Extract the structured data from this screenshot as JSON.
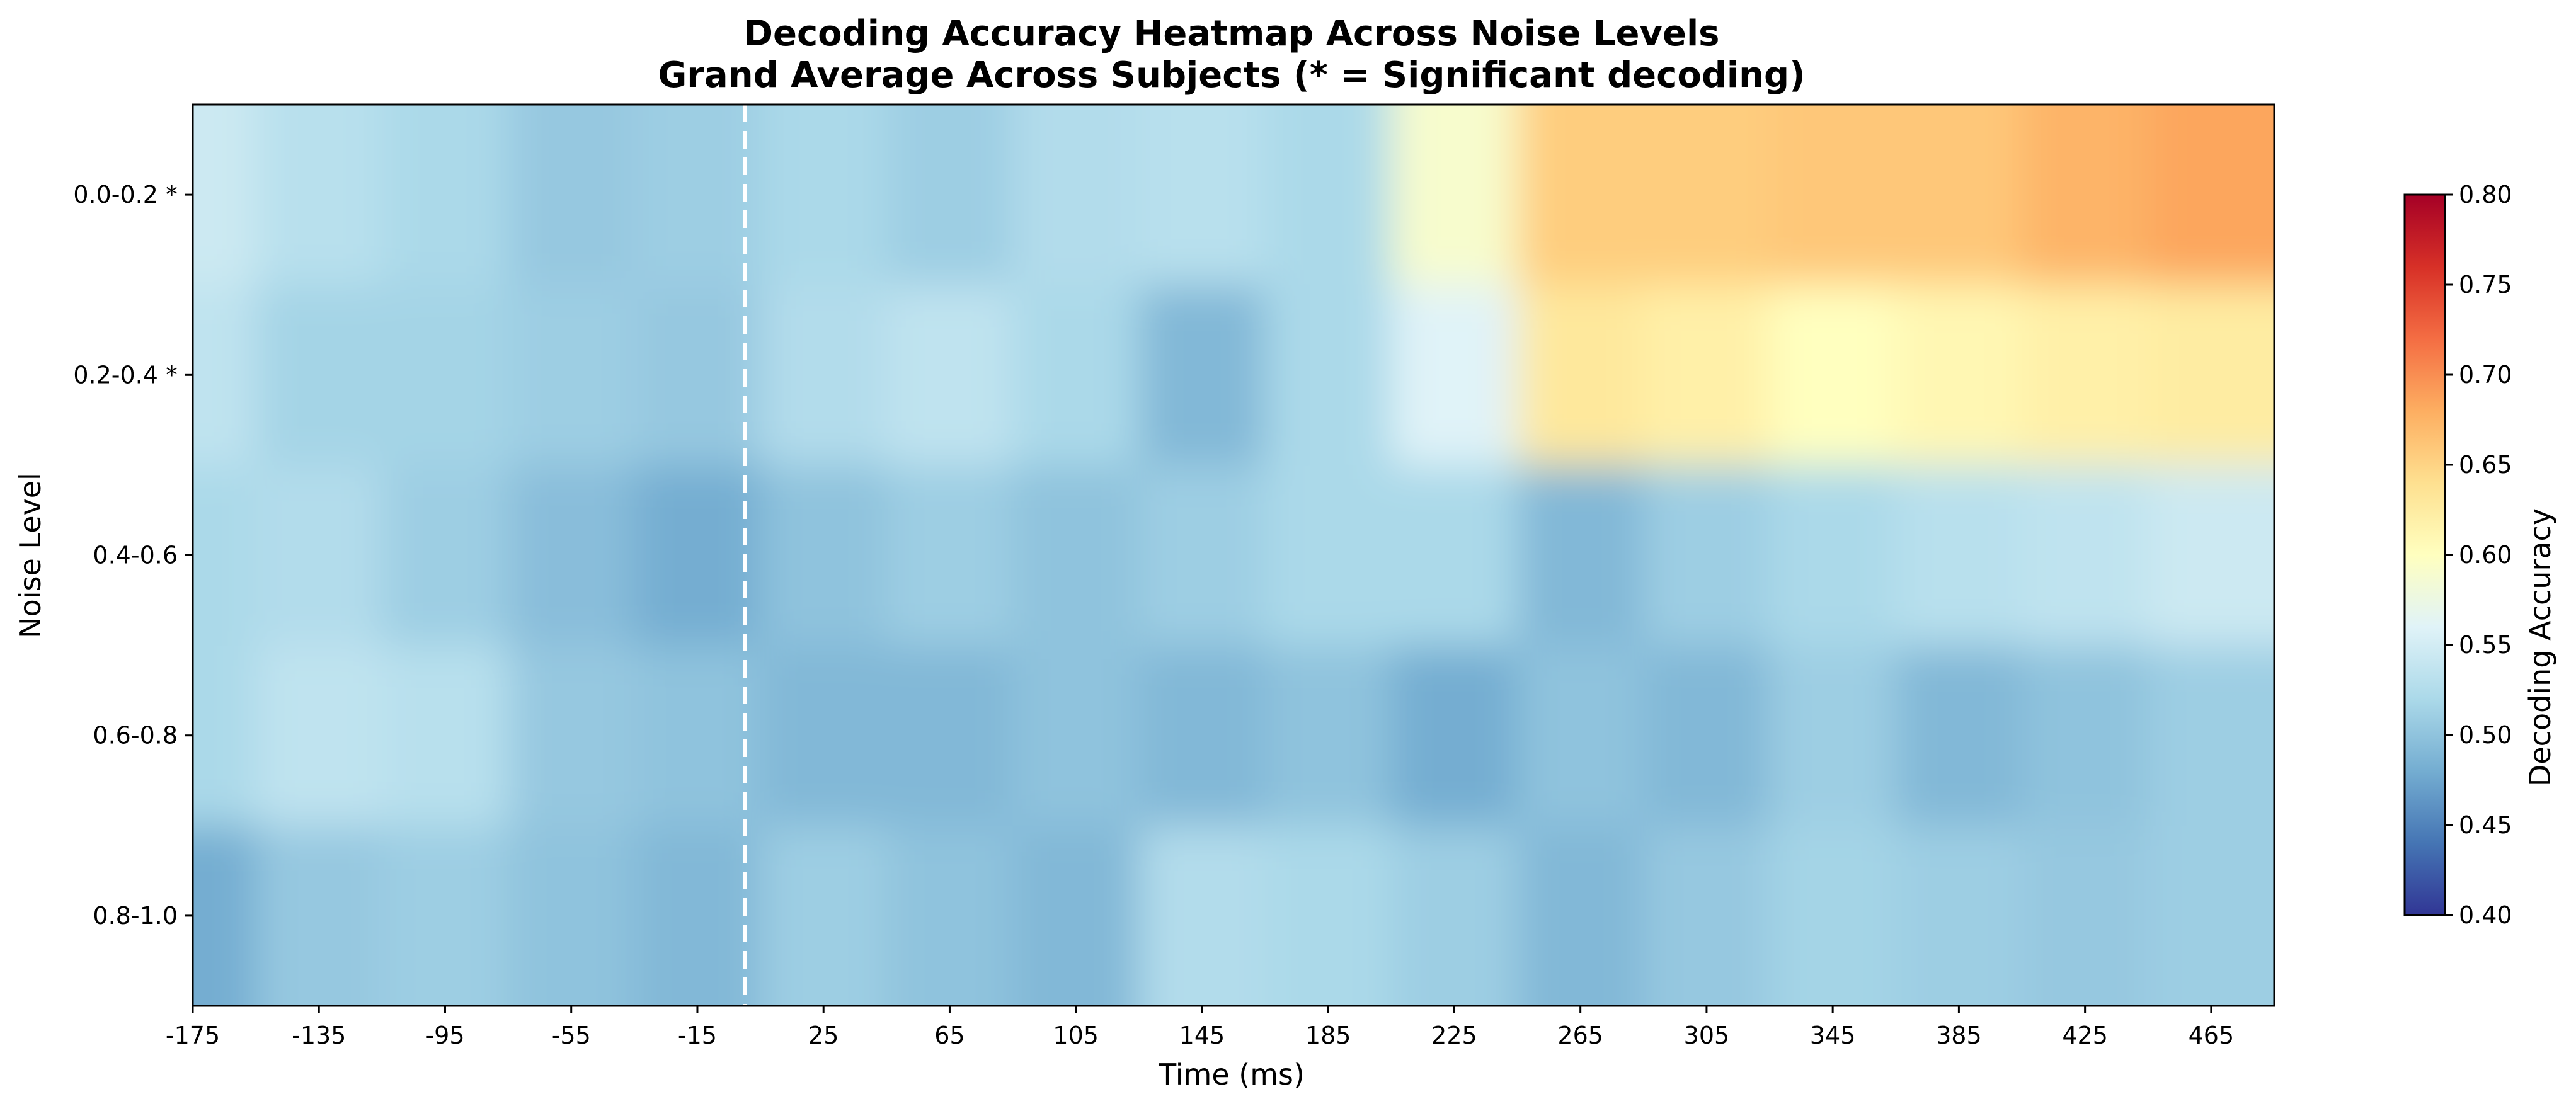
{
  "chart_data": {
    "type": "heatmap",
    "title_line1": "Decoding Accuracy Heatmap Across Noise Levels",
    "title_line2": "Grand Average Across Subjects (* = Significant decoding)",
    "xlabel": "Time (ms)",
    "ylabel": "Noise Level",
    "colorbar_label": "Decoding Accuracy",
    "colormap": "RdYlBu_r",
    "colormap_stops": [
      "#313695",
      "#4575b4",
      "#74add1",
      "#abd9e9",
      "#e0f3f8",
      "#ffffbf",
      "#fee090",
      "#fdae61",
      "#f46d43",
      "#d73027",
      "#a50026"
    ],
    "vlim": [
      0.4,
      0.8
    ],
    "colorbar_ticks": [
      "0.40",
      "0.45",
      "0.50",
      "0.55",
      "0.60",
      "0.65",
      "0.70",
      "0.75",
      "0.80"
    ],
    "x_tick_labels": [
      "-175",
      "-135",
      "-95",
      "-55",
      "-15",
      "25",
      "65",
      "105",
      "145",
      "185",
      "225",
      "265",
      "305",
      "345",
      "385",
      "425",
      "465"
    ],
    "x_ticks": [
      -175,
      -135,
      -95,
      -55,
      -15,
      25,
      65,
      105,
      145,
      185,
      225,
      265,
      305,
      345,
      385,
      425,
      465
    ],
    "xlim": [
      -175,
      485
    ],
    "x": [
      -175,
      -135,
      -95,
      -55,
      -15,
      25,
      65,
      105,
      145,
      185,
      225,
      265,
      305,
      345,
      385,
      425,
      465
    ],
    "y_categories": [
      "0.0-0.2 *",
      "0.2-0.4 *",
      "0.4-0.6",
      "0.6-0.8",
      "0.8-1.0"
    ],
    "significant_rows": [
      "0.0-0.2",
      "0.2-0.4"
    ],
    "stimulus_onset_ms": 0,
    "values": [
      [
        0.545,
        0.53,
        0.52,
        0.505,
        0.51,
        0.52,
        0.51,
        0.525,
        0.53,
        0.52,
        0.59,
        0.655,
        0.655,
        0.66,
        0.66,
        0.675,
        0.685
      ],
      [
        0.535,
        0.515,
        0.515,
        0.51,
        0.505,
        0.525,
        0.535,
        0.52,
        0.49,
        0.52,
        0.56,
        0.63,
        0.62,
        0.6,
        0.61,
        0.62,
        0.625
      ],
      [
        0.52,
        0.525,
        0.51,
        0.495,
        0.48,
        0.5,
        0.51,
        0.5,
        0.51,
        0.52,
        0.52,
        0.49,
        0.51,
        0.52,
        0.53,
        0.535,
        0.545
      ],
      [
        0.52,
        0.535,
        0.53,
        0.505,
        0.5,
        0.49,
        0.49,
        0.5,
        0.49,
        0.5,
        0.48,
        0.5,
        0.49,
        0.51,
        0.49,
        0.5,
        0.51
      ],
      [
        0.48,
        0.505,
        0.51,
        0.5,
        0.49,
        0.51,
        0.5,
        0.49,
        0.525,
        0.52,
        0.51,
        0.49,
        0.505,
        0.515,
        0.51,
        0.505,
        0.51
      ]
    ]
  }
}
